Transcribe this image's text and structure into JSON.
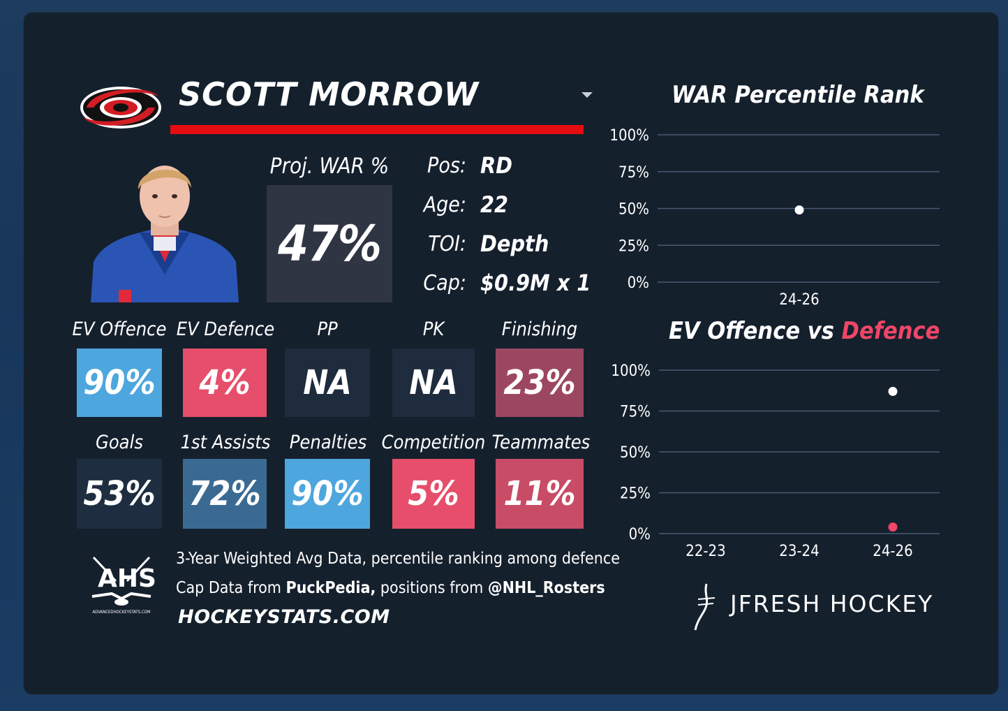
{
  "player": {
    "name": "SCOTT MORROW",
    "team_logo": "hurricanes-logo",
    "proj_war_label": "Proj. WAR %",
    "proj_war_value": "47%"
  },
  "info": [
    {
      "label": "Pos:",
      "value": "RD"
    },
    {
      "label": "Age:",
      "value": "22"
    },
    {
      "label": "TOI:",
      "value": "Depth"
    },
    {
      "label": "Cap:",
      "value": "$0.9M x 1"
    }
  ],
  "stats_row1": [
    {
      "label": "EV Offence",
      "value": "90%",
      "color": "#4ea6de"
    },
    {
      "label": "EV Defence",
      "value": "4%",
      "color": "#e64e6b"
    },
    {
      "label": "PP",
      "value": "NA",
      "color": "#1e2c3d"
    },
    {
      "label": "PK",
      "value": "NA",
      "color": "#1e2c3d"
    },
    {
      "label": "Finishing",
      "value": "23%",
      "color": "#9c4760"
    }
  ],
  "stats_row2": [
    {
      "label": "Goals",
      "value": "53%",
      "color": "#1e2d40"
    },
    {
      "label": "1st Assists",
      "value": "72%",
      "color": "#3a6a92"
    },
    {
      "label": "Penalties",
      "value": "90%",
      "color": "#4ea6de"
    },
    {
      "label": "Competition",
      "value": "5%",
      "color": "#e64e6b"
    },
    {
      "label": "Teammates",
      "value": "11%",
      "color": "#c84c66"
    }
  ],
  "footer": {
    "line1": "3-Year Weighted Avg Data, percentile ranking among defence",
    "line2_a": "Cap Data from ",
    "line2_b": "PuckPedia,",
    "line2_c": " positions from ",
    "line2_d": "@NHL_Rosters",
    "site": "HOCKEYSTATS.COM",
    "ahs": "AHS",
    "ahs_small": "ADVANCEDHOCKEYSTATS.COM",
    "brand": "JFRESH HOCKEY"
  },
  "chart_data": [
    {
      "type": "scatter",
      "title": "WAR Percentile Rank",
      "categories": [
        "24-26"
      ],
      "y_ticks": [
        "100%",
        "75%",
        "50%",
        "25%",
        "0%"
      ],
      "ylim": [
        0,
        100
      ],
      "series": [
        {
          "values": [
            49
          ],
          "color": "#ffffff"
        }
      ]
    },
    {
      "type": "scatter",
      "title_a": "EV Offence",
      "title_b": " vs ",
      "title_c": "Defence",
      "title_c_color": "#ef4667",
      "categories": [
        "22-23",
        "23-24",
        "24-26"
      ],
      "y_ticks": [
        "100%",
        "75%",
        "50%",
        "25%",
        "0%"
      ],
      "ylim": [
        0,
        100
      ],
      "series": [
        {
          "values": [
            null,
            null,
            87
          ],
          "color": "#ffffff"
        },
        {
          "values": [
            null,
            null,
            4
          ],
          "color": "#ef4667"
        }
      ]
    }
  ]
}
